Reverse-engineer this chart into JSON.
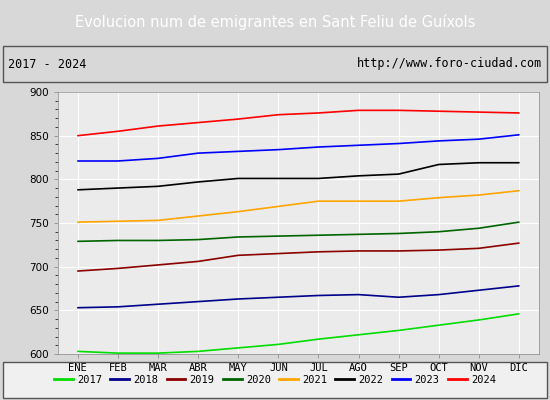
{
  "title": "Evolucion num de emigrantes en Sant Feliu de Guíxols",
  "subtitle_left": "2017 - 2024",
  "subtitle_right": "http://www.foro-ciudad.com",
  "x_labels": [
    "ENE",
    "FEB",
    "MAR",
    "ABR",
    "MAY",
    "JUN",
    "JUL",
    "AGO",
    "SEP",
    "OCT",
    "NOV",
    "DIC"
  ],
  "ylim": [
    600,
    900
  ],
  "yticks": [
    600,
    650,
    700,
    750,
    800,
    850,
    900
  ],
  "bg_color": "#d8d8d8",
  "plot_bg_color": "#ebebeb",
  "title_bg_color": "#5599dd",
  "title_color": "white",
  "subtitle_border_color": "#333333",
  "legend_bg_color": "#f0f0f0",
  "series": {
    "2017": {
      "color": "#00dd00",
      "data": [
        603,
        601,
        601,
        603,
        607,
        611,
        617,
        622,
        627,
        633,
        639,
        646
      ]
    },
    "2018": {
      "color": "#00008b",
      "data": [
        653,
        654,
        657,
        660,
        663,
        665,
        667,
        668,
        665,
        668,
        673,
        678
      ]
    },
    "2019": {
      "color": "#8b0000",
      "data": [
        695,
        698,
        702,
        706,
        713,
        715,
        717,
        718,
        718,
        719,
        721,
        727
      ]
    },
    "2020": {
      "color": "#006400",
      "data": [
        729,
        730,
        730,
        731,
        734,
        735,
        736,
        737,
        738,
        740,
        744,
        751
      ]
    },
    "2021": {
      "color": "#ffa500",
      "data": [
        751,
        752,
        753,
        758,
        763,
        769,
        775,
        775,
        775,
        779,
        782,
        787
      ]
    },
    "2022": {
      "color": "#000000",
      "data": [
        788,
        790,
        792,
        797,
        801,
        801,
        801,
        804,
        806,
        817,
        819,
        819
      ]
    },
    "2023": {
      "color": "#0000ff",
      "data": [
        821,
        821,
        824,
        830,
        832,
        834,
        837,
        839,
        841,
        844,
        846,
        851
      ]
    },
    "2024": {
      "color": "#ff0000",
      "data": [
        850,
        855,
        861,
        865,
        869,
        874,
        876,
        879,
        879,
        878,
        877,
        876
      ]
    }
  },
  "legend_order": [
    "2017",
    "2018",
    "2019",
    "2020",
    "2021",
    "2022",
    "2023",
    "2024"
  ]
}
